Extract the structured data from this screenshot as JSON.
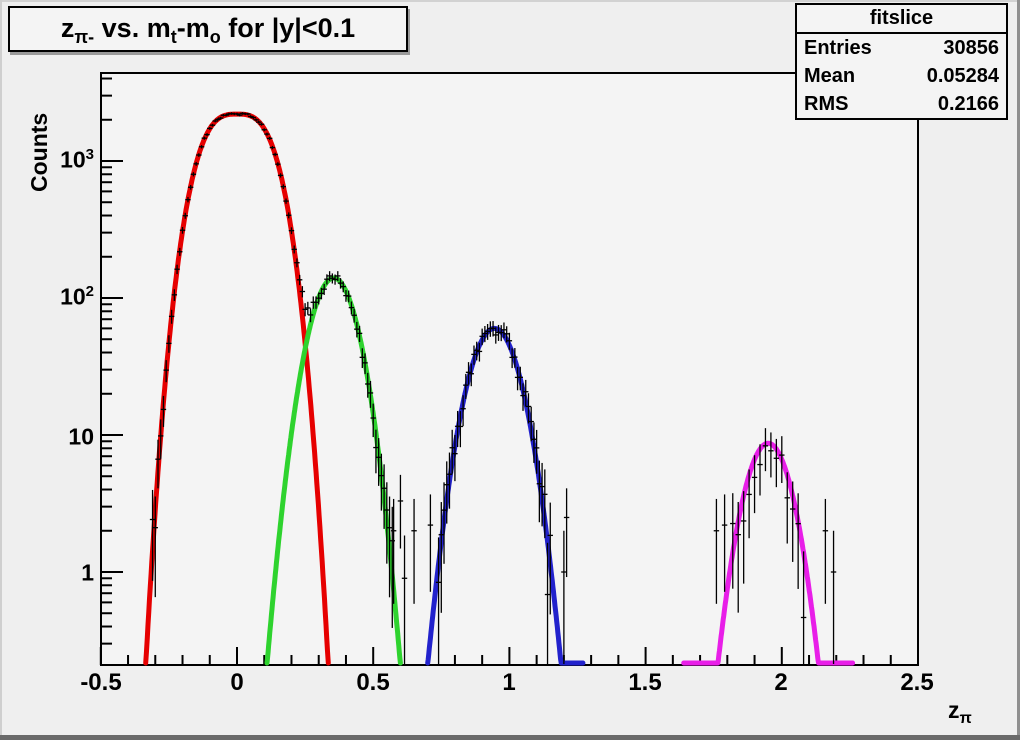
{
  "title": {
    "part1": "z",
    "part1_sub": "π-",
    "part2": " vs. m",
    "part2_sub": "t",
    "part3": "-m",
    "part3_sub": "o",
    "part4": " for |y|<0.1"
  },
  "stats": {
    "header": "fitslice",
    "rows": [
      {
        "label": "Entries",
        "value": "30856"
      },
      {
        "label": "Mean",
        "value": "0.05284"
      },
      {
        "label": "RMS",
        "value": "0.2166"
      }
    ]
  },
  "axes": {
    "y_title": "Counts",
    "x_title_base": "z",
    "x_title_sub": "π",
    "y_ticks": [
      {
        "base": "10",
        "exp": "3",
        "v": 1000
      },
      {
        "base": "10",
        "exp": "2",
        "v": 100
      },
      {
        "base": "10",
        "exp": "",
        "v": 10
      },
      {
        "base": "1",
        "exp": "",
        "v": 1
      }
    ],
    "x_ticks": [
      {
        "label": "-0.5",
        "v": -0.5
      },
      {
        "label": "0",
        "v": 0
      },
      {
        "label": "0.5",
        "v": 0.5
      },
      {
        "label": "1",
        "v": 1
      },
      {
        "label": "1.5",
        "v": 1.5
      },
      {
        "label": "2",
        "v": 2
      },
      {
        "label": "2.5",
        "v": 2.5
      }
    ]
  },
  "chart_data": {
    "type": "histogram_log_with_gaussian_fits",
    "title": "z_pi- vs. m_t-m_o for |y|<0.1",
    "xlabel": "z_pi",
    "ylabel": "Counts",
    "xlim": [
      -0.5,
      2.5
    ],
    "ylim_log": [
      0.21,
      4386
    ],
    "y_scale": "log",
    "bin_width": 0.01,
    "stats": {
      "name": "fitslice",
      "entries": 30856,
      "mean": 0.05284,
      "rms": 0.2166
    },
    "fits": [
      {
        "name": "fit-red",
        "color": "#e60000",
        "mean": 0.0,
        "peak": 2200,
        "half_width": 0.335,
        "shape_exp": 3,
        "flat_segments": []
      },
      {
        "name": "fit-green",
        "color": "#2ed32e",
        "mean": 0.355,
        "peak": 140,
        "half_width": 0.245,
        "shape_exp": 2,
        "flat_segments": []
      },
      {
        "name": "fit-blue",
        "color": "#2222cc",
        "mean": 0.945,
        "peak": 60,
        "half_width": 0.245,
        "shape_exp": 2,
        "flat_segments": [
          [
            1.19,
            1.27
          ]
        ]
      },
      {
        "name": "fit-magenta",
        "color": "#e81ee8",
        "mean": 1.95,
        "peak": 8.7,
        "half_width": 0.185,
        "shape_exp": 2,
        "flat_segments": [
          [
            1.64,
            1.765
          ],
          [
            2.135,
            2.26
          ]
        ]
      }
    ],
    "extra_points": [
      [
        0.575,
        2.0
      ],
      [
        0.6,
        3.3
      ],
      [
        0.615,
        0.9
      ],
      [
        0.65,
        2.0
      ],
      [
        0.71,
        2.2
      ],
      [
        1.2,
        1.0
      ],
      [
        1.21,
        2.5
      ],
      [
        1.76,
        2.0
      ],
      [
        1.79,
        2.2
      ],
      [
        2.16,
        2.0
      ],
      [
        2.19,
        1.0
      ]
    ]
  }
}
